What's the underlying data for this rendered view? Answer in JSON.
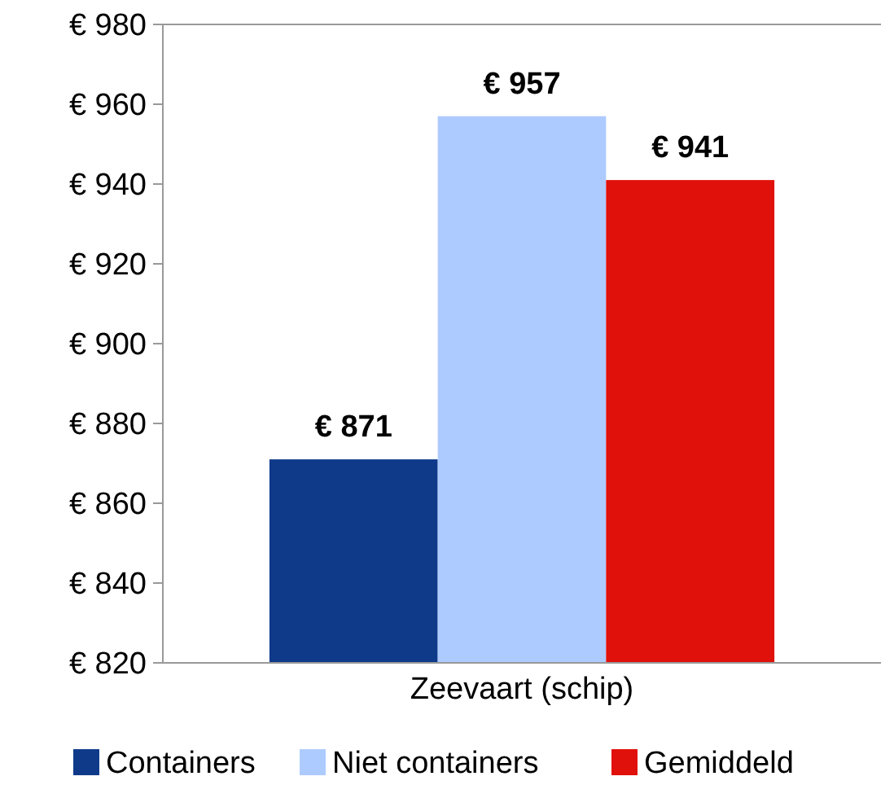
{
  "chart_data": {
    "type": "bar",
    "categories": [
      "Zeevaart (schip)"
    ],
    "series": [
      {
        "name": "Containers",
        "color": "#0f3a8a",
        "values": [
          871
        ],
        "value_labels": [
          "€ 871"
        ]
      },
      {
        "name": "Niet containers",
        "color": "#aecbff",
        "values": [
          957
        ],
        "value_labels": [
          "€ 957"
        ]
      },
      {
        "name": "Gemiddeld",
        "color": "#e0100a",
        "values": [
          941
        ],
        "value_labels": [
          "€ 941"
        ]
      }
    ],
    "ylim": [
      820,
      980
    ],
    "yticks": [
      {
        "value": 820,
        "label": "€ 820"
      },
      {
        "value": 840,
        "label": "€ 840"
      },
      {
        "value": 860,
        "label": "€ 860"
      },
      {
        "value": 880,
        "label": "€ 880"
      },
      {
        "value": 900,
        "label": "€ 900"
      },
      {
        "value": 920,
        "label": "€ 920"
      },
      {
        "value": 940,
        "label": "€ 940"
      },
      {
        "value": 960,
        "label": "€ 960"
      },
      {
        "value": 980,
        "label": "€ 980"
      }
    ],
    "grid": false,
    "legend": "bottom"
  }
}
